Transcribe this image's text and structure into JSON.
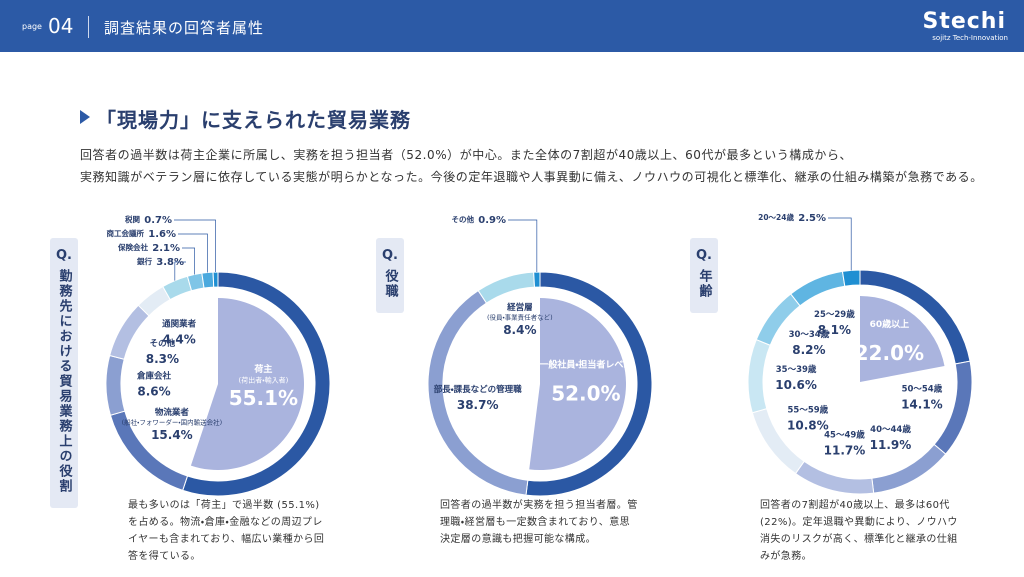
{
  "header": {
    "page_label": "page",
    "page_number": "04",
    "title": "調査結果の回答者属性",
    "logo": "Stechi",
    "logo_sub": "sojitz Tech-Innovation"
  },
  "heading": "「現場力」に支えられた貿易業務",
  "body": [
    "回答者の過半数は荷主企業に所属し、実務を担う担当者（52.0%）が中心。また全体の7割超が40歳以上、60代が最多という構成から、",
    "実務知識がベテラン層に依存している実態が明らかとなった。今後の定年退職や人事異動に備え、ノウハウの可視化と標準化、継承の仕組み構築が急務である。"
  ],
  "q_mark": "Q.",
  "chart_data": [
    {
      "type": "pie",
      "title": "勤務先における貿易業務上の役割",
      "categories": [
        "荷主",
        "物流業者",
        "倉庫会社",
        "その他",
        "通関業者",
        "銀行",
        "保険会社",
        "商工会議所",
        "税関"
      ],
      "notes": [
        "(荷出者・輸入者)",
        "(船社・フォワーダー・国内輸送会社)",
        null,
        null,
        null,
        null,
        null,
        null,
        null
      ],
      "values": [
        55.1,
        15.4,
        8.6,
        8.3,
        4.4,
        3.8,
        2.1,
        1.6,
        0.7
      ],
      "value_labels": [
        "55.1%",
        "15.4%",
        "8.6%",
        "8.3%",
        "4.4%",
        "3.8%",
        "2.1%",
        "1.6%",
        "0.7%"
      ],
      "colors": [
        "#2b58a4",
        "#5a77b9",
        "#8b9fd1",
        "#b3bfe2",
        "#e3ecf5",
        "#a9daeb",
        "#7fc5e7",
        "#4aa9de",
        "#1f8fd2"
      ],
      "highlight_color": "#aab4de",
      "caption": "最も多いのは「荷主」で過半数 (55.1%) を占める。物流・倉庫・金融などの周辺プレイヤーも含まれており、幅広い業種から回答を得ている。"
    },
    {
      "type": "pie",
      "title": "役職",
      "categories": [
        "一般社員・担当者レベル",
        "部長・課長などの管理職",
        "経営層",
        "その他"
      ],
      "notes": [
        null,
        null,
        "(役員・事業責任者など)",
        null
      ],
      "values": [
        52.0,
        38.7,
        8.4,
        0.9
      ],
      "value_labels": [
        "52.0%",
        "38.7%",
        "8.4%",
        "0.9%"
      ],
      "colors": [
        "#2b58a4",
        "#8b9fd1",
        "#a9daeb",
        "#1f8fd2"
      ],
      "highlight_color": "#aab4de",
      "caption": "回答者の過半数が実務を担う担当者層。管理職・経営層も一定数含まれており、意思決定層の意識も把握可能な構成。"
    },
    {
      "type": "pie",
      "title": "年齢",
      "categories": [
        "60歳以上",
        "50～54歳",
        "40～44歳",
        "45～49歳",
        "55～59歳",
        "35～39歳",
        "30～34歳",
        "25～29歳",
        "20～24歳"
      ],
      "notes": [
        null,
        null,
        null,
        null,
        null,
        null,
        null,
        null,
        null
      ],
      "values": [
        22.0,
        14.1,
        11.9,
        11.7,
        10.8,
        10.6,
        8.2,
        8.1,
        2.5
      ],
      "value_labels": [
        "22.0%",
        "14.1%",
        "11.9%",
        "11.7%",
        "10.8%",
        "10.6%",
        "8.2%",
        "8.1%",
        "2.5%"
      ],
      "colors": [
        "#2b58a4",
        "#5a77b9",
        "#8b9fd1",
        "#b3bfe2",
        "#e3ecf5",
        "#c9e7f3",
        "#8fcdea",
        "#5fb5e2",
        "#1f8fd2"
      ],
      "highlight_color": "#aab4de",
      "caption": "回答者の7割超が40歳以上、最多は60代 (22%)。定年退職や異動により、ノウハウ消失のリスクが高く、標準化と継承の仕組みが急務。"
    }
  ]
}
